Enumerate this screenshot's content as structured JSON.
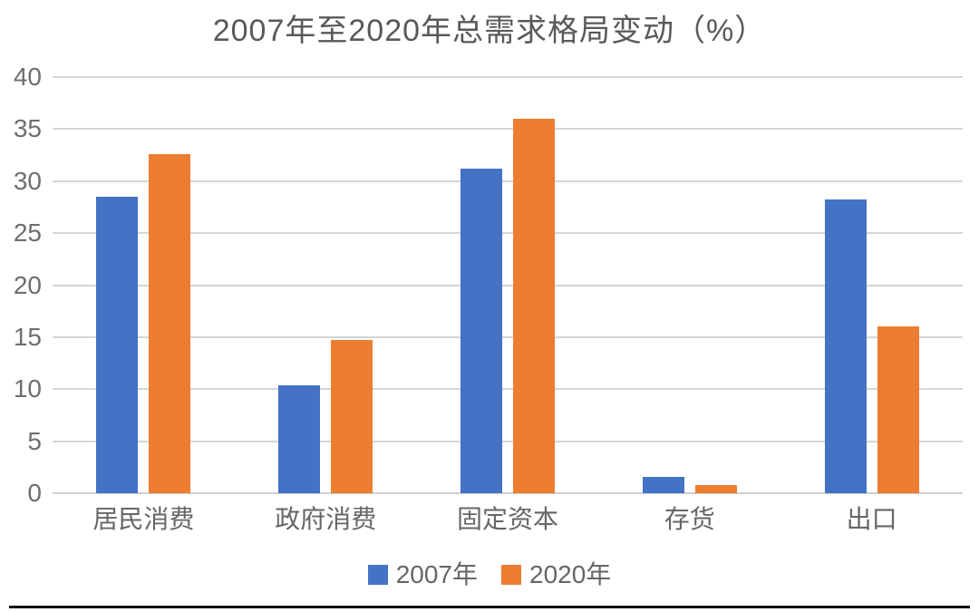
{
  "page": {
    "background": "#ffffff",
    "bottom_rule_color": "#111111"
  },
  "chart_data": {
    "type": "bar",
    "title": "2007年至2020年总需求格局变动（%）",
    "categories": [
      "居民消费",
      "政府消费",
      "固定资本",
      "存货",
      "出口"
    ],
    "series": [
      {
        "name": "2007年",
        "color": "#4472C4",
        "values": [
          28.5,
          10.4,
          31.2,
          1.6,
          28.2
        ]
      },
      {
        "name": "2020年",
        "color": "#ED7D31",
        "values": [
          32.6,
          14.7,
          36.0,
          0.8,
          16.0
        ]
      }
    ],
    "xlabel": "",
    "ylabel": "",
    "ylim": [
      0,
      40
    ],
    "yticks": [
      0,
      5,
      10,
      15,
      20,
      25,
      30,
      35,
      40
    ],
    "grid": "horizontal",
    "gridline_color": "#D6D6D6",
    "baseline_color": "#CFCFCF",
    "axis_text_color": "#6e6e6e",
    "title_color": "#595959",
    "legend_position": "bottom"
  }
}
